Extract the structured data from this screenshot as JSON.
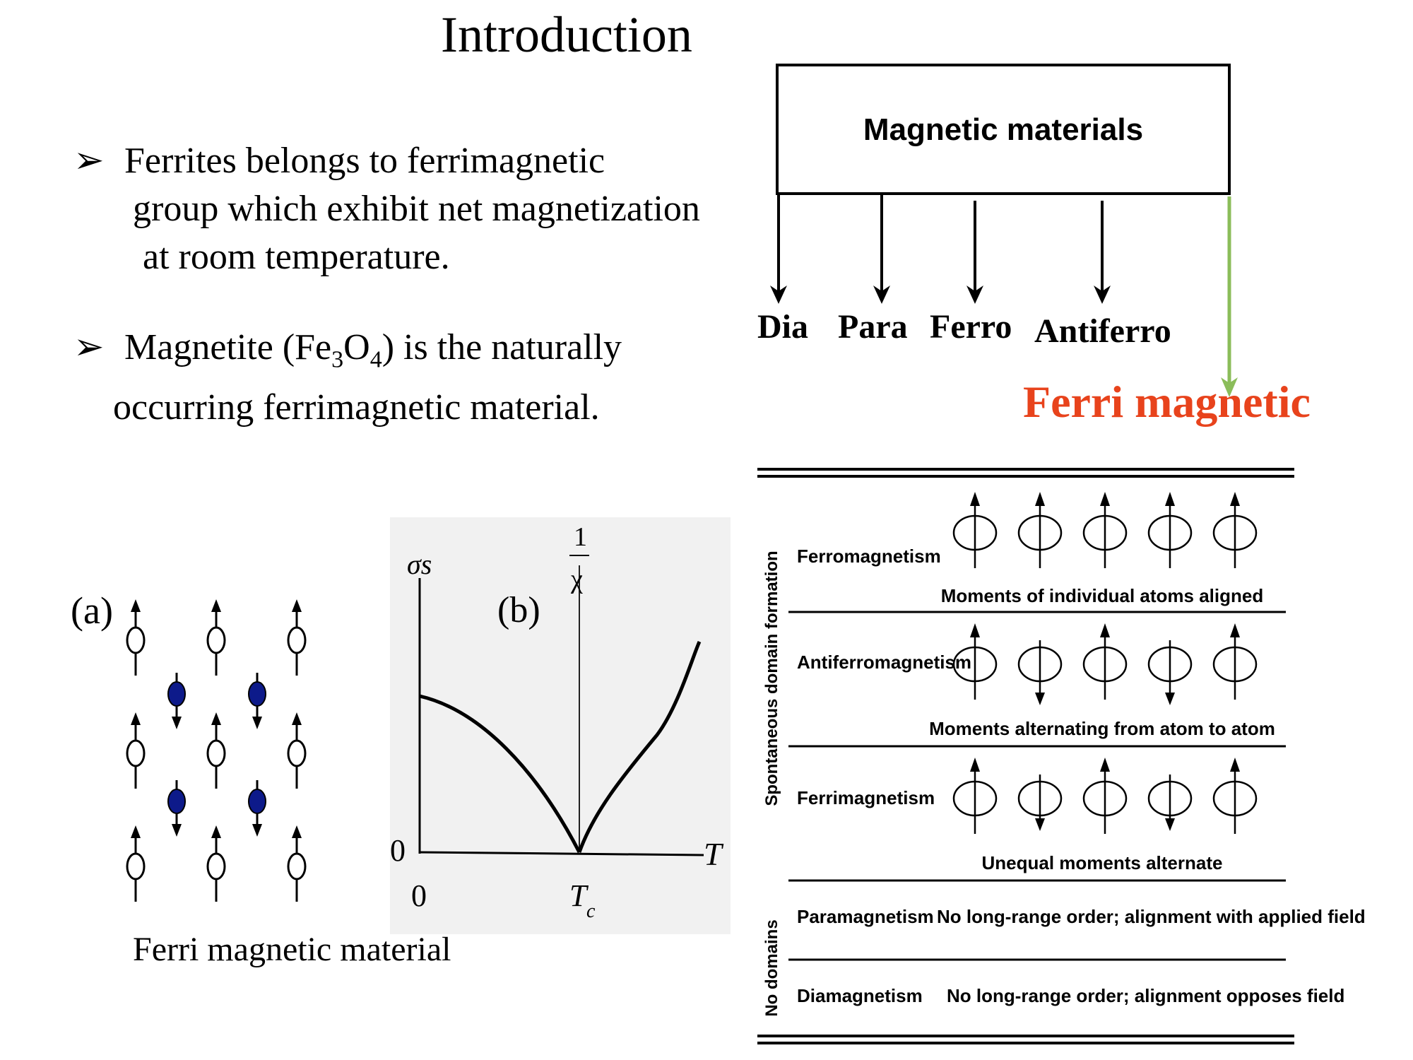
{
  "title": "Introduction",
  "bullets": [
    {
      "lines": [
        "Ferrites belongs to  ferrimagnetic",
        "group which exhibit net magnetization",
        "at room temperature."
      ]
    },
    {
      "prefix": "Magnetite (Fe",
      "sub1": "3",
      "mid": "O",
      "sub2": "4",
      "suffix": ") is the naturally",
      "line2": "occurring ferrimagnetic material."
    }
  ],
  "hierarchy": {
    "root": "Magnetic materials",
    "children": [
      "Dia",
      "Para",
      "Ferro",
      "Antiferro"
    ],
    "highlight": "Ferri magnetic",
    "highlight_color": "#e8431c",
    "highlight_arrow_color": "#8bbd5a"
  },
  "figure_a": {
    "label": "(a)",
    "minority_color": "#0d1a8a"
  },
  "figure_b": {
    "label": "(b)",
    "y_left_label": "σs",
    "y_right_label_num": "1",
    "y_right_label_den": "χ",
    "x_label": "T",
    "tc_label": "T",
    "tc_sub": "c",
    "origin_y": "0",
    "origin_x": "0"
  },
  "caption": "Ferri magnetic material",
  "table": {
    "group_labels": [
      "Spontaneous domain formation",
      "No domains"
    ],
    "rows": [
      {
        "name": "Ferromagnetism",
        "desc": "Moments of individual atoms aligned",
        "pattern": [
          "up",
          "up",
          "up",
          "up",
          "up"
        ]
      },
      {
        "name": "Antiferromagnetism",
        "desc": "Moments alternating from atom to atom",
        "pattern": [
          "up",
          "down",
          "up",
          "down",
          "up"
        ]
      },
      {
        "name": "Ferrimagnetism",
        "desc": "Unequal moments alternate",
        "pattern": [
          "up",
          "down-short",
          "up",
          "down-short",
          "up"
        ]
      },
      {
        "name": "Paramagnetism",
        "desc": "No long-range order; alignment with applied field"
      },
      {
        "name": "Diamagnetism",
        "desc": "No long-range order; alignment opposes field"
      }
    ]
  }
}
